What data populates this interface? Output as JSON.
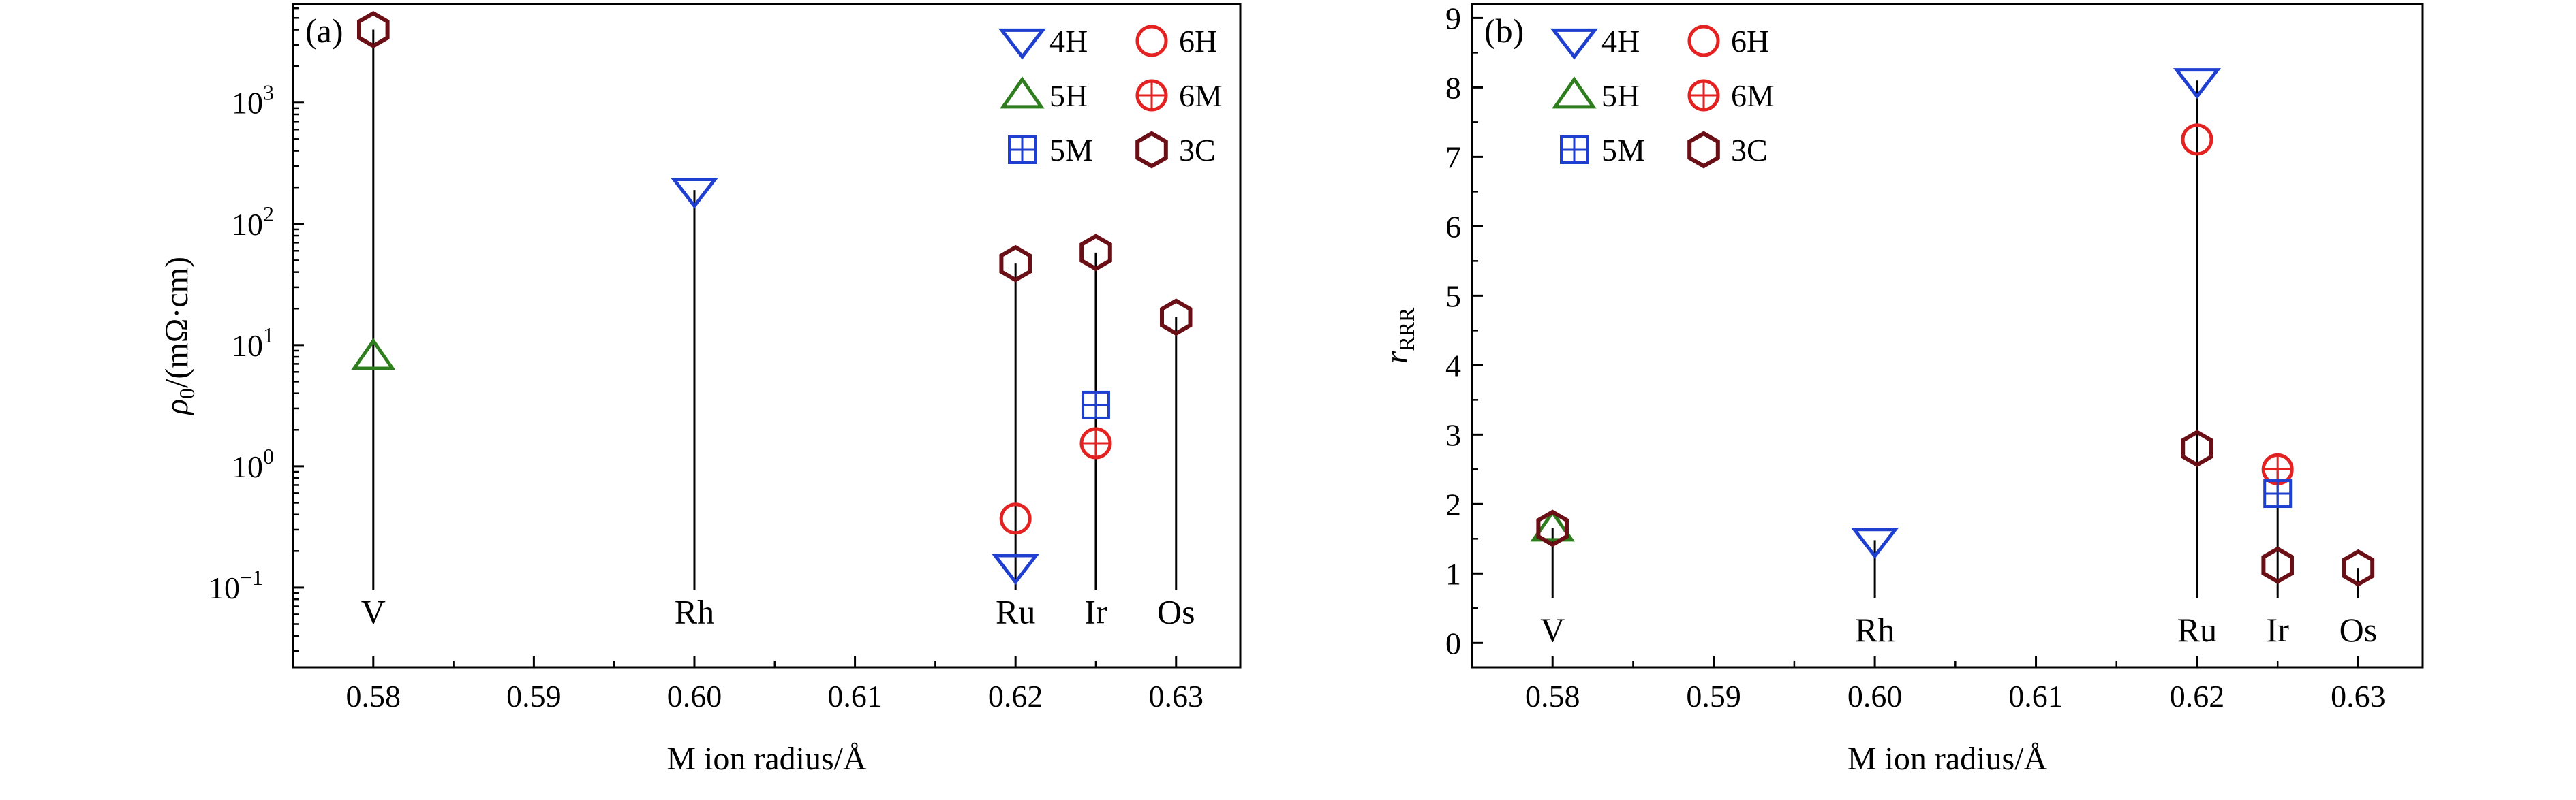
{
  "chart_data": [
    {
      "type": "scatter",
      "panel_label": "(a)",
      "xlabel": "M ion radius/Å",
      "ylabel_main": "ρ",
      "ylabel_sub": "0",
      "ylabel_rest": "/(mΩ·cm)",
      "yscale": "log",
      "xlim": [
        0.575,
        0.634
      ],
      "ylim": [
        0.022,
        6500
      ],
      "x_ticks": [
        {
          "value": 0.58,
          "label": "0.58"
        },
        {
          "value": 0.59,
          "label": "0.59"
        },
        {
          "value": 0.6,
          "label": "0.60"
        },
        {
          "value": 0.61,
          "label": "0.61"
        },
        {
          "value": 0.62,
          "label": "0.62"
        },
        {
          "value": 0.63,
          "label": "0.63"
        }
      ],
      "y_ticks": [
        {
          "value": 0.1,
          "base": "10",
          "exp": "−1"
        },
        {
          "value": 1,
          "base": "10",
          "exp": "0"
        },
        {
          "value": 10,
          "base": "10",
          "exp": "1"
        },
        {
          "value": 100,
          "base": "10",
          "exp": "2"
        },
        {
          "value": 1000,
          "base": "10",
          "exp": "3"
        }
      ],
      "elements": [
        {
          "name": "V",
          "x": 0.58,
          "y_label": 0.064
        },
        {
          "name": "Rh",
          "x": 0.6,
          "y_label": 0.064
        },
        {
          "name": "Ru",
          "x": 0.62,
          "y_label": 0.064
        },
        {
          "name": "Ir",
          "x": 0.625,
          "y_label": 0.064
        },
        {
          "name": "Os",
          "x": 0.63,
          "y_label": 0.064
        }
      ],
      "stems": [
        {
          "x": 0.58,
          "y_low": 0.095,
          "y_high": 4000
        },
        {
          "x": 0.6,
          "y_low": 0.095,
          "y_high": 190
        },
        {
          "x": 0.62,
          "y_low": 0.095,
          "y_high": 47
        },
        {
          "x": 0.625,
          "y_low": 0.095,
          "y_high": 58
        },
        {
          "x": 0.63,
          "y_low": 0.095,
          "y_high": 17
        }
      ],
      "points": [
        {
          "series": "3C",
          "x": 0.58,
          "y": 4000
        },
        {
          "series": "5H",
          "x": 0.58,
          "y": 8
        },
        {
          "series": "4H",
          "x": 0.6,
          "y": 190
        },
        {
          "series": "3C",
          "x": 0.62,
          "y": 47
        },
        {
          "series": "6H",
          "x": 0.62,
          "y": 0.37
        },
        {
          "series": "4H",
          "x": 0.62,
          "y": 0.15
        },
        {
          "series": "3C",
          "x": 0.625,
          "y": 58
        },
        {
          "series": "5M",
          "x": 0.625,
          "y": 3.2
        },
        {
          "series": "6M",
          "x": 0.625,
          "y": 1.55
        },
        {
          "series": "3C",
          "x": 0.63,
          "y": 17
        }
      ]
    },
    {
      "type": "scatter",
      "panel_label": "(b)",
      "xlabel": "M ion radius/Å",
      "ylabel_main": "r",
      "ylabel_sub": "RRR",
      "ylabel_rest": "",
      "yscale": "linear",
      "xlim": [
        0.575,
        0.634
      ],
      "ylim": [
        -0.35,
        9.2
      ],
      "x_ticks": [
        {
          "value": 0.58,
          "label": "0.58"
        },
        {
          "value": 0.59,
          "label": "0.59"
        },
        {
          "value": 0.6,
          "label": "0.60"
        },
        {
          "value": 0.61,
          "label": "0.61"
        },
        {
          "value": 0.62,
          "label": "0.62"
        },
        {
          "value": 0.63,
          "label": "0.63"
        }
      ],
      "y_ticks": [
        {
          "value": 0,
          "label": "0"
        },
        {
          "value": 1,
          "label": "1"
        },
        {
          "value": 2,
          "label": "2"
        },
        {
          "value": 3,
          "label": "3"
        },
        {
          "value": 4,
          "label": "4"
        },
        {
          "value": 5,
          "label": "5"
        },
        {
          "value": 6,
          "label": "6"
        },
        {
          "value": 7,
          "label": "7"
        },
        {
          "value": 8,
          "label": "8"
        },
        {
          "value": 9,
          "label": "9"
        }
      ],
      "elements": [
        {
          "name": "V",
          "x": 0.58,
          "y_label": 0.2
        },
        {
          "name": "Rh",
          "x": 0.6,
          "y_label": 0.2
        },
        {
          "name": "Ru",
          "x": 0.62,
          "y_label": 0.2
        },
        {
          "name": "Ir",
          "x": 0.625,
          "y_label": 0.2
        },
        {
          "name": "Os",
          "x": 0.63,
          "y_label": 0.2
        }
      ],
      "stems": [
        {
          "x": 0.58,
          "y_low": 0.65,
          "y_high": 1.65
        },
        {
          "x": 0.6,
          "y_low": 0.65,
          "y_high": 1.48
        },
        {
          "x": 0.62,
          "y_low": 0.65,
          "y_high": 8.1
        },
        {
          "x": 0.625,
          "y_low": 0.65,
          "y_high": 2.5
        },
        {
          "x": 0.63,
          "y_low": 0.65,
          "y_high": 1.08
        }
      ],
      "points": [
        {
          "series": "5H",
          "x": 0.58,
          "y": 1.65
        },
        {
          "series": "3C",
          "x": 0.58,
          "y": 1.65
        },
        {
          "series": "4H",
          "x": 0.6,
          "y": 1.48
        },
        {
          "series": "4H",
          "x": 0.62,
          "y": 8.1
        },
        {
          "series": "6H",
          "x": 0.62,
          "y": 7.25
        },
        {
          "series": "3C",
          "x": 0.62,
          "y": 2.8
        },
        {
          "series": "6M",
          "x": 0.625,
          "y": 2.5
        },
        {
          "series": "5M",
          "x": 0.625,
          "y": 2.15
        },
        {
          "series": "3C",
          "x": 0.625,
          "y": 1.12
        },
        {
          "series": "3C",
          "x": 0.63,
          "y": 1.08
        }
      ]
    }
  ],
  "legend": {
    "placement": "top-right",
    "columns": [
      [
        "4H",
        "5H",
        "5M"
      ],
      [
        "6H",
        "6M",
        "3C"
      ]
    ]
  },
  "series_styles": {
    "4H": {
      "marker": "triangle-down-icon",
      "color": "#1f3fd1"
    },
    "5H": {
      "marker": "triangle-up-icon",
      "color": "#2e7d1e"
    },
    "5M": {
      "marker": "square-plus-icon",
      "color": "#1f3fd1"
    },
    "6H": {
      "marker": "circle-icon",
      "color": "#e52222"
    },
    "6M": {
      "marker": "circle-plus-icon",
      "color": "#e52222"
    },
    "3C": {
      "marker": "hexagon-icon",
      "color": "#6b0f16"
    }
  }
}
